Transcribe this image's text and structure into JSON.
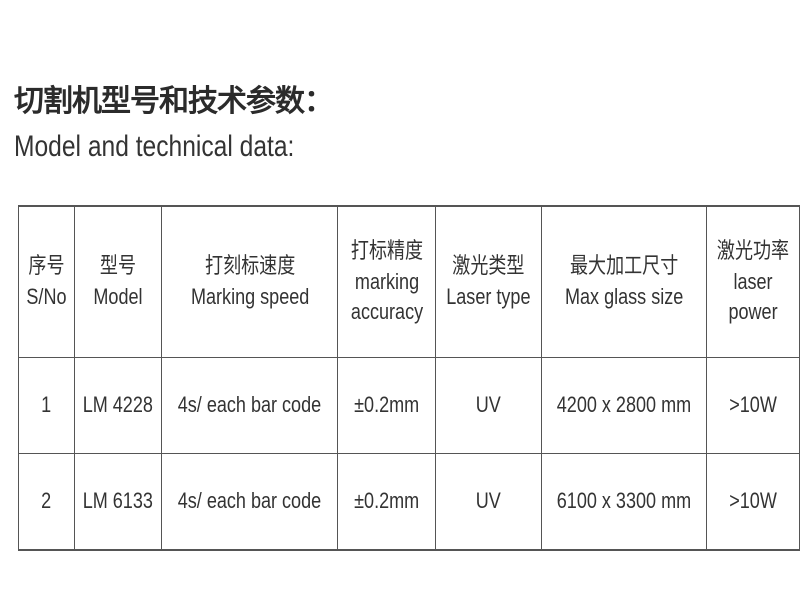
{
  "title_cn": "切割机型号和技术参数：",
  "title_en": "Model and technical data:",
  "table": {
    "headers": [
      [
        "序号",
        "S/No"
      ],
      [
        "型号",
        "Model"
      ],
      [
        "打刻标速度",
        "Marking speed"
      ],
      [
        "打标精度",
        "marking",
        "accuracy"
      ],
      [
        "激光类型",
        "Laser type"
      ],
      [
        "最大加工尺寸",
        "Max glass size"
      ],
      [
        "激光功率",
        "laser",
        "power"
      ]
    ],
    "rows": [
      [
        "1",
        "LM 4228",
        "4s/ each bar code",
        "±0.2mm",
        "UV",
        "4200 x 2800 mm",
        ">10W"
      ],
      [
        "2",
        "LM 6133",
        "4s/ each bar code",
        "±0.2mm",
        "UV",
        "6100 x 3300 mm",
        ">10W"
      ]
    ]
  }
}
